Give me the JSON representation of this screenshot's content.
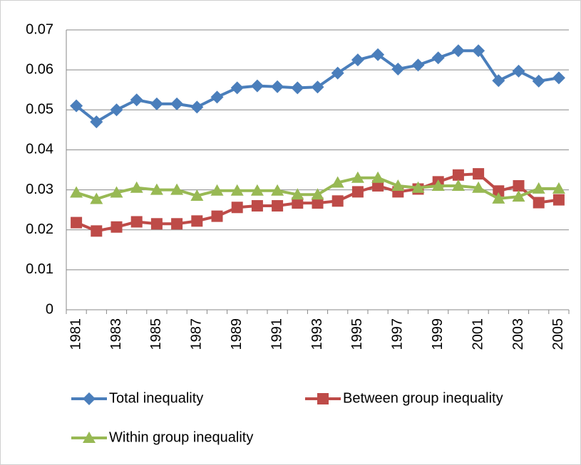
{
  "chart_data": {
    "type": "line",
    "categories": [
      "1981",
      null,
      "1983",
      null,
      "1985",
      null,
      "1987",
      null,
      "1989",
      null,
      "1991",
      null,
      "1993",
      null,
      "1995",
      null,
      "1997",
      null,
      "1999",
      null,
      "2001",
      null,
      "2003",
      null,
      "2005"
    ],
    "series": [
      {
        "name": "Total inequality",
        "color": "#4a7ebb",
        "marker": "diamond",
        "values": [
          0.051,
          0.047,
          0.05,
          0.0525,
          0.0515,
          0.0515,
          0.0507,
          0.0532,
          0.0555,
          0.056,
          0.0558,
          0.0555,
          0.0557,
          0.0592,
          0.0625,
          0.0638,
          0.0602,
          0.0612,
          0.063,
          0.0648,
          0.0648,
          0.0573,
          0.0597,
          0.0572,
          0.058
        ]
      },
      {
        "name": "Between group inequality",
        "color": "#be4b48",
        "marker": "square",
        "values": [
          0.0218,
          0.0197,
          0.0207,
          0.022,
          0.0215,
          0.0215,
          0.0222,
          0.0234,
          0.0256,
          0.026,
          0.026,
          0.0267,
          0.0267,
          0.0272,
          0.0295,
          0.031,
          0.0295,
          0.0302,
          0.032,
          0.0337,
          0.034,
          0.0297,
          0.031,
          0.0268,
          0.0275
        ]
      },
      {
        "name": "Within group inequality",
        "color": "#98b954",
        "marker": "triangle",
        "values": [
          0.0293,
          0.0277,
          0.0293,
          0.0305,
          0.03,
          0.03,
          0.0285,
          0.0298,
          0.0298,
          0.0298,
          0.0298,
          0.0288,
          0.0288,
          0.0318,
          0.033,
          0.033,
          0.031,
          0.0305,
          0.031,
          0.031,
          0.0305,
          0.0278,
          0.0283,
          0.0303,
          0.0303
        ]
      }
    ],
    "ylim": [
      0,
      0.07
    ],
    "yticks": [
      0,
      0.01,
      0.02,
      0.03,
      0.04,
      0.05,
      0.06,
      0.07
    ],
    "grid": true,
    "legend": "bottom"
  }
}
